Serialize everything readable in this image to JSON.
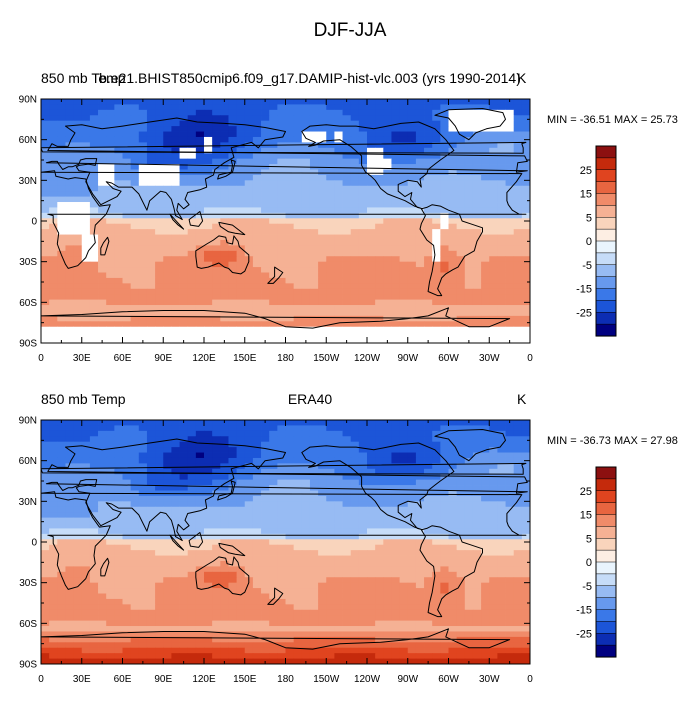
{
  "title": "DJF-JJA",
  "colors": [
    "#000080",
    "#0c2db3",
    "#1c55d8",
    "#3a78e8",
    "#6799ee",
    "#97bbf3",
    "#c6dcf8",
    "#e9f4fd",
    "#fdeee3",
    "#f9d4bc",
    "#f5b194",
    "#f08b69",
    "#e86540",
    "#e0441f",
    "#c52a0c",
    "#8c1010"
  ],
  "colorbar": {
    "tick_labels": [
      "25",
      "15",
      "5",
      "0",
      "-5",
      "-15",
      "-25"
    ],
    "units": "K"
  },
  "axes": {
    "y_ticks": [
      "90N",
      "60N",
      "30N",
      "0",
      "30S",
      "60S",
      "90S"
    ],
    "x_ticks": [
      "0",
      "30E",
      "60E",
      "90E",
      "120E",
      "150E",
      "180",
      "150W",
      "120W",
      "90W",
      "60W",
      "30W",
      "0"
    ]
  },
  "panels": [
    {
      "left_label": "850 mb Temp",
      "center_label": "b.e21.BHIST850cmip6.f09_g17.DAMIP-hist-vlc.003 (yrs 1990-2014)",
      "units": "K",
      "stats": "MIN = -36.51 MAX =  25.73",
      "mask_high_terrain": true,
      "min": -36.51,
      "max": 25.73
    },
    {
      "left_label": "850 mb Temp",
      "center_label": "ERA40",
      "units": "K",
      "stats": "MIN = -36.73 MAX =  27.98",
      "mask_high_terrain": false,
      "min": -36.73,
      "max": 27.98
    }
  ]
}
